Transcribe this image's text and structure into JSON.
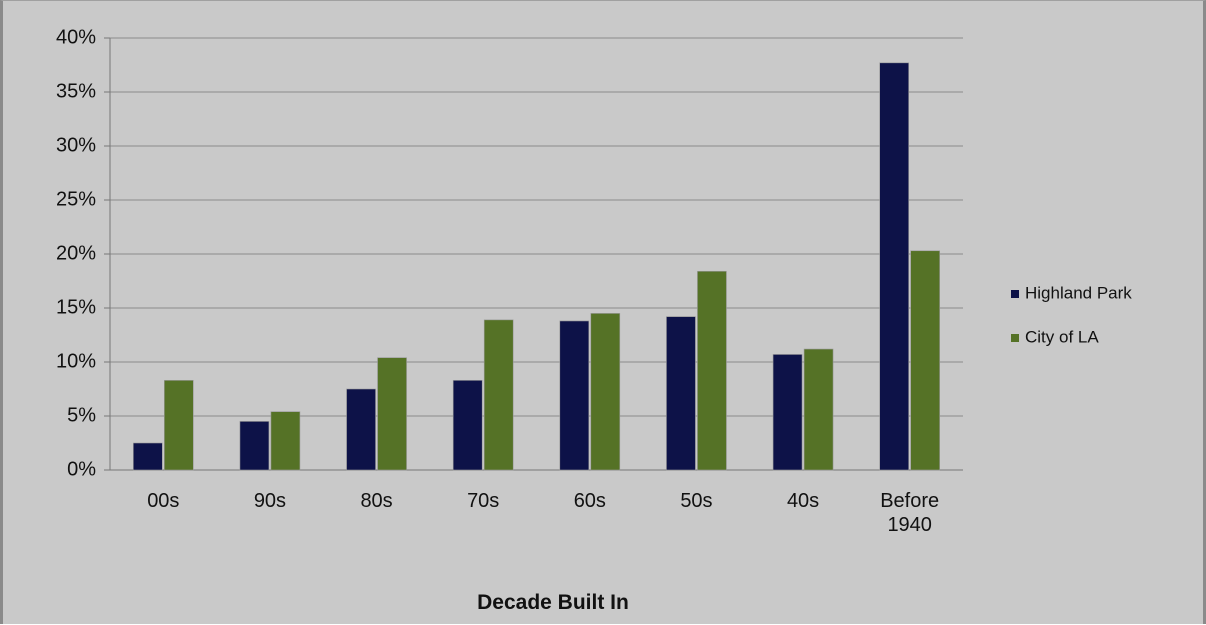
{
  "chart_data": {
    "type": "bar",
    "x_label": "Decade Built In",
    "categories": [
      "00s",
      "90s",
      "80s",
      "70s",
      "60s",
      "50s",
      "40s",
      "Before 1940"
    ],
    "series": [
      {
        "name": "Highland Park",
        "color": "#0d1248",
        "values": [
          2.5,
          4.5,
          7.5,
          8.3,
          13.8,
          14.2,
          10.7,
          37.7
        ]
      },
      {
        "name": "City of LA",
        "color": "#557226",
        "values": [
          8.3,
          5.4,
          10.4,
          13.9,
          14.5,
          18.4,
          11.2,
          20.3
        ]
      }
    ],
    "ylim": [
      0,
      40
    ],
    "yticks": [
      {
        "value": 0,
        "label": "0%"
      },
      {
        "value": 5,
        "label": "5%"
      },
      {
        "value": 10,
        "label": "10%"
      },
      {
        "value": 15,
        "label": "15%"
      },
      {
        "value": 20,
        "label": "20%"
      },
      {
        "value": 25,
        "label": "25%"
      },
      {
        "value": 30,
        "label": "30%"
      },
      {
        "value": 35,
        "label": "35%"
      },
      {
        "value": 40,
        "label": "40%"
      }
    ],
    "grid": true,
    "legend": "right"
  }
}
